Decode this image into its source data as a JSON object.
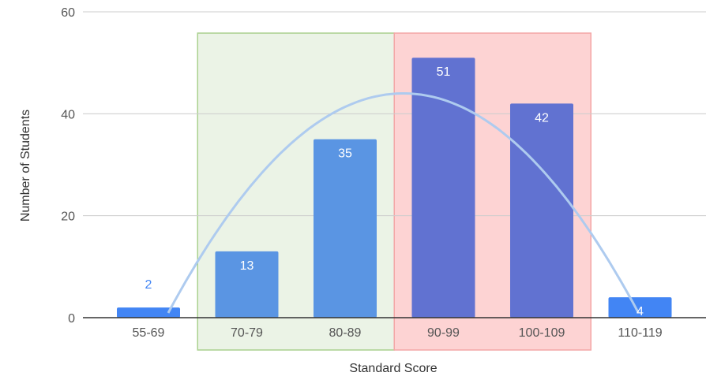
{
  "chart_data": {
    "type": "bar",
    "title": "",
    "xlabel": "Standard Score",
    "ylabel": "Number of Students",
    "ylim": [
      0,
      60
    ],
    "yticks": [
      "0",
      "20",
      "40",
      "60"
    ],
    "categories": [
      "55-69",
      "70-79",
      "80-89",
      "90-99",
      "100-109",
      "110-119"
    ],
    "values": [
      2,
      13,
      35,
      51,
      42,
      4
    ],
    "bar_colors": [
      "#4285f4",
      "#5a95e3",
      "#5a95e3",
      "#6172d1",
      "#6172d1",
      "#4285f4"
    ],
    "label_colors": [
      "#4285f4",
      "#ffffff",
      "#ffffff",
      "#ffffff",
      "#ffffff",
      "#ffffff"
    ],
    "highlight_regions": [
      {
        "from": "70-79",
        "to": "80-89",
        "color": "#ebf3e6",
        "border": "#a9d08e"
      },
      {
        "from": "90-99",
        "to": "100-109",
        "color": "#fdd3d3",
        "border": "#f4a6a6"
      }
    ],
    "trend_curve": {
      "color": "#aecbef",
      "peak_value": 44
    },
    "grid": true,
    "legend": "none"
  }
}
